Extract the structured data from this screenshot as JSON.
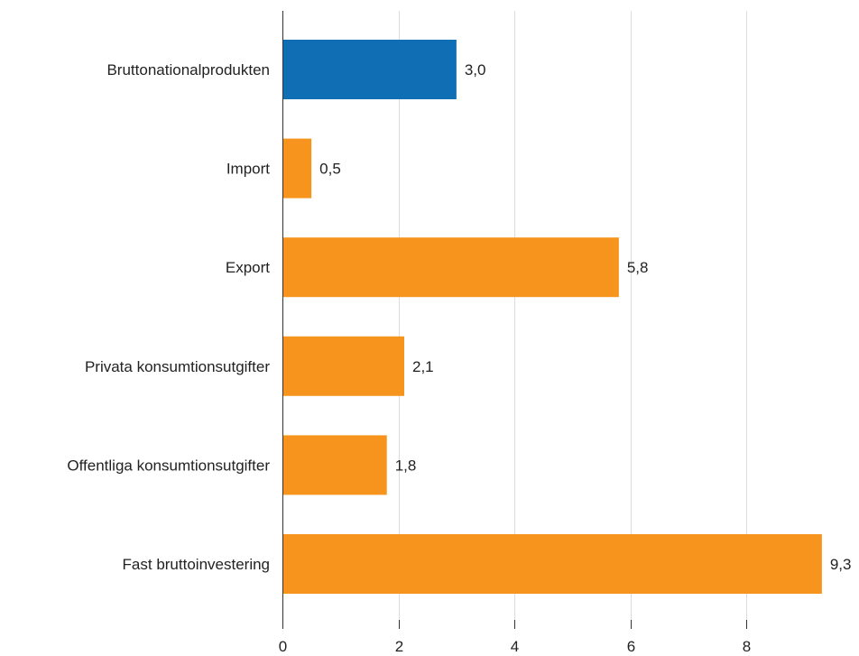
{
  "chart_data": {
    "type": "bar",
    "orientation": "horizontal",
    "categories": [
      "Bruttonationalprodukten",
      "Import",
      "Export",
      "Privata konsumtionsutgifter",
      "Offentliga konsumtionsutgifter",
      "Fast bruttoinvestering"
    ],
    "values": [
      3.0,
      0.5,
      5.8,
      2.1,
      1.8,
      9.3
    ],
    "value_labels": [
      "3,0",
      "0,5",
      "5,8",
      "2,1",
      "1,8",
      "9,3"
    ],
    "bar_colors": [
      "#0f6eb4",
      "#f7941d",
      "#f7941d",
      "#f7941d",
      "#f7941d",
      "#f7941d"
    ],
    "xlim": [
      0,
      9.8
    ],
    "x_ticks": [
      0,
      2,
      4,
      6,
      8
    ],
    "x_tick_labels": [
      "0",
      "2",
      "4",
      "6",
      "8"
    ],
    "grid": true,
    "legend": false
  }
}
